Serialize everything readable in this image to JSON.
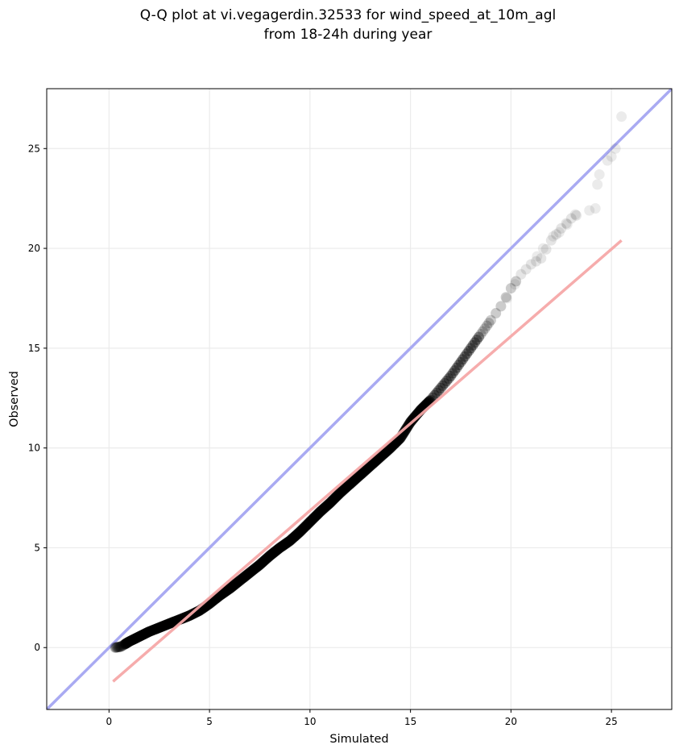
{
  "chart_data": {
    "type": "scatter",
    "title_line1": "Q-Q plot at vi.vegagerdin.32533 for wind_speed_at_10m_agl",
    "title_line2": "from 18-24h during year",
    "xlabel": "Simulated",
    "ylabel": "Observed",
    "xlim": [
      -3.1,
      28.0
    ],
    "ylim": [
      -3.1,
      28.0
    ],
    "xticks": [
      0,
      5,
      10,
      15,
      20,
      25
    ],
    "yticks": [
      0,
      5,
      10,
      15,
      20,
      25
    ],
    "grid": true,
    "colors": {
      "points": "#000000",
      "identity_line": "#a9aaf2",
      "fit_line": "#f5a8a8",
      "grid": "#ebebeb"
    },
    "identity_line": {
      "from": [
        -3.1,
        -3.1
      ],
      "to": [
        28.0,
        28.0
      ]
    },
    "fit_line": {
      "from": [
        0.2,
        -1.7
      ],
      "to": [
        25.5,
        20.4
      ]
    },
    "quantile_curve": [
      [
        0.3,
        0.0
      ],
      [
        0.6,
        0.05
      ],
      [
        1.0,
        0.3
      ],
      [
        1.5,
        0.55
      ],
      [
        2.0,
        0.8
      ],
      [
        2.5,
        1.0
      ],
      [
        3.0,
        1.2
      ],
      [
        3.5,
        1.4
      ],
      [
        4.0,
        1.6
      ],
      [
        4.5,
        1.85
      ],
      [
        5.0,
        2.2
      ],
      [
        5.5,
        2.6
      ],
      [
        6.0,
        2.95
      ],
      [
        6.5,
        3.35
      ],
      [
        7.0,
        3.75
      ],
      [
        7.5,
        4.15
      ],
      [
        8.0,
        4.6
      ],
      [
        8.5,
        5.0
      ],
      [
        9.0,
        5.35
      ],
      [
        9.5,
        5.8
      ],
      [
        10.0,
        6.3
      ],
      [
        10.5,
        6.8
      ],
      [
        11.0,
        7.25
      ],
      [
        11.5,
        7.75
      ],
      [
        12.0,
        8.2
      ],
      [
        12.5,
        8.65
      ],
      [
        13.0,
        9.1
      ],
      [
        13.5,
        9.55
      ],
      [
        14.0,
        10.0
      ],
      [
        14.5,
        10.5
      ],
      [
        15.0,
        11.3
      ],
      [
        15.5,
        11.9
      ],
      [
        16.0,
        12.4
      ],
      [
        16.5,
        13.0
      ],
      [
        17.0,
        13.6
      ],
      [
        17.5,
        14.3
      ],
      [
        18.0,
        15.0
      ],
      [
        18.5,
        15.7
      ],
      [
        19.0,
        16.4
      ],
      [
        19.5,
        17.1
      ],
      [
        20.0,
        18.0
      ],
      [
        20.5,
        18.7
      ],
      [
        21.0,
        19.2
      ],
      [
        21.5,
        19.5
      ],
      [
        22.0,
        20.4
      ],
      [
        22.5,
        21.0
      ],
      [
        23.0,
        21.5
      ],
      [
        23.5,
        21.8
      ]
    ],
    "tail_points": [
      [
        19.8,
        17.5
      ],
      [
        20.2,
        18.2
      ],
      [
        21.3,
        19.6
      ],
      [
        21.6,
        20.0
      ],
      [
        22.1,
        20.6
      ],
      [
        22.4,
        20.8
      ],
      [
        22.8,
        21.2
      ],
      [
        23.2,
        21.7
      ],
      [
        23.9,
        21.9
      ],
      [
        24.2,
        22.0
      ],
      [
        24.3,
        23.2
      ],
      [
        24.4,
        23.7
      ],
      [
        24.8,
        24.4
      ],
      [
        25.0,
        24.6
      ],
      [
        25.2,
        25.0
      ],
      [
        25.5,
        26.6
      ]
    ]
  }
}
